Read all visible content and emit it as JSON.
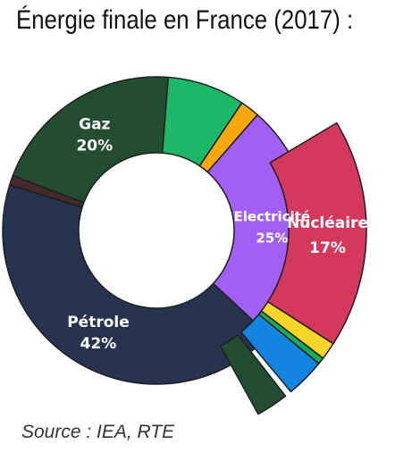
{
  "title": "Énergie finale en France (2017) :",
  "source": "Source : IEA, RTE",
  "chart_data": {
    "type": "pie",
    "subtype": "donut-with-exploded-electricity-breakdown",
    "main_ring": {
      "slices": [
        {
          "key": "petrole",
          "label": "Pétrole",
          "pct_text": "42%",
          "value": 42,
          "color": "#27344f"
        },
        {
          "key": "small_brown",
          "label": "",
          "pct_text": "",
          "value": 1,
          "color": "#442a2a"
        },
        {
          "key": "gaz",
          "label": "Gaz",
          "pct_text": "20%",
          "value": 20,
          "color": "#234d31"
        },
        {
          "key": "green",
          "label": "",
          "pct_text": "",
          "value": 8,
          "color": "#1cb867"
        },
        {
          "key": "orange",
          "label": "",
          "pct_text": "",
          "value": 2,
          "color": "#f8a70f"
        },
        {
          "key": "electricite",
          "label": "Electricité",
          "pct_text": "25%",
          "value": 25,
          "color": "#a25ff5"
        }
      ]
    },
    "electricity_breakdown": {
      "slices": [
        {
          "key": "nucleaire",
          "label": "Nucléaire",
          "pct_text": "17%",
          "value": 17,
          "color": "#d4385c"
        },
        {
          "key": "yellow",
          "label": "",
          "pct_text": "",
          "value": 1.3,
          "color": "#f8d52a"
        },
        {
          "key": "green_small",
          "label": "",
          "pct_text": "",
          "value": 0.5,
          "color": "#1ba95c"
        },
        {
          "key": "blue",
          "label": "",
          "pct_text": "",
          "value": 2.9,
          "color": "#1385e0"
        },
        {
          "key": "gap",
          "label": "",
          "pct_text": "",
          "value": 0.5,
          "color": ""
        },
        {
          "key": "dark_green",
          "label": "",
          "pct_text": "",
          "value": 2.4,
          "color": "#234d31"
        }
      ]
    }
  }
}
